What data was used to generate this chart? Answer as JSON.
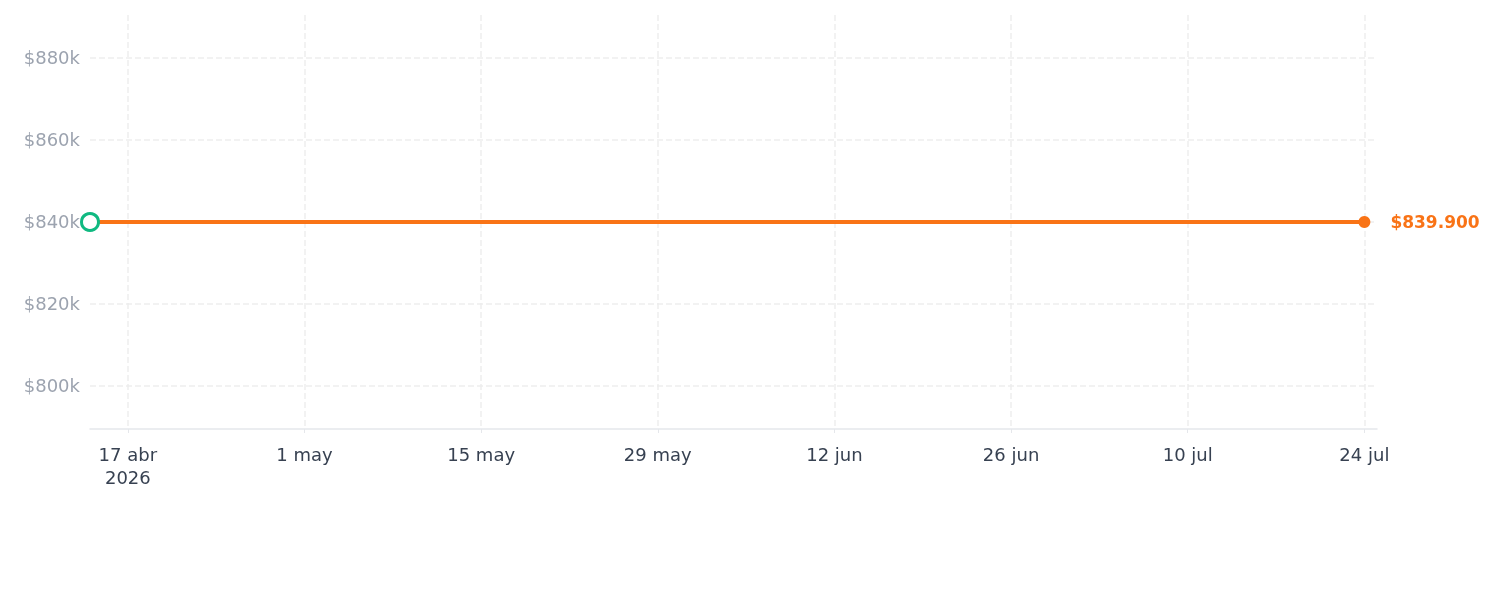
{
  "chart_data": {
    "type": "line",
    "x": [
      "2026-04-14",
      "2026-07-24"
    ],
    "series": [
      {
        "color": "#f97316",
        "colors": [
          "#10b981",
          "#f97316"
        ],
        "values": [
          839900,
          839900
        ],
        "value_labels": [
          null,
          "$839.900"
        ]
      }
    ],
    "xlim": [
      "2026-04-14",
      "2026-07-25"
    ],
    "xticks": [
      {
        "value": "2026-04-17",
        "label": "17 abr\n2026"
      },
      {
        "value": "2026-05-01",
        "label": "1 may"
      },
      {
        "value": "2026-05-15",
        "label": "15 may"
      },
      {
        "value": "2026-05-29",
        "label": "29 may"
      },
      {
        "value": "2026-06-12",
        "label": "12 jun"
      },
      {
        "value": "2026-06-26",
        "label": "26 jun"
      },
      {
        "value": "2026-07-10",
        "label": "10 jul"
      },
      {
        "value": "2026-07-24",
        "label": "24 jul"
      }
    ],
    "ylim": [
      789500,
      890300
    ],
    "yticks": [
      {
        "value": 800000,
        "label": "$800k"
      },
      {
        "value": 820000,
        "label": "$820k"
      },
      {
        "value": 840000,
        "label": "$840k"
      },
      {
        "value": 860000,
        "label": "$860k"
      },
      {
        "value": 880000,
        "label": "$880k"
      }
    ],
    "grid": true,
    "marker": "circle",
    "line_style": "solid"
  }
}
